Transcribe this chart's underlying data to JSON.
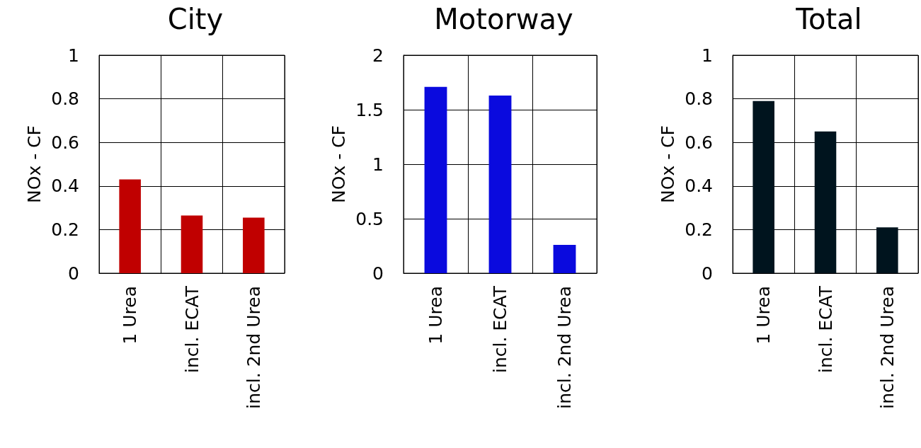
{
  "chart_data": [
    {
      "type": "bar",
      "title": "City",
      "ylabel": "NOx - CF",
      "categories": [
        "1 Urea",
        "incl. ECAT",
        "incl. 2nd Urea"
      ],
      "values": [
        0.43,
        0.265,
        0.255
      ],
      "color": "#c00000",
      "ylim": [
        0,
        1
      ],
      "yticks": [
        0,
        0.2,
        0.4,
        0.6,
        0.8,
        1
      ],
      "grid": true
    },
    {
      "type": "bar",
      "title": "Motorway",
      "ylabel": "NOx - CF",
      "categories": [
        "1 Urea",
        "incl. ECAT",
        "incl. 2nd Urea"
      ],
      "values": [
        1.71,
        1.63,
        0.26
      ],
      "color": "#0a0ade",
      "ylim": [
        0,
        2
      ],
      "yticks": [
        0,
        0.5,
        1,
        1.5,
        2
      ],
      "grid": true
    },
    {
      "type": "bar",
      "title": "Total",
      "ylabel": "NOx - CF",
      "categories": [
        "1 Urea",
        "incl. ECAT",
        "incl. 2nd Urea"
      ],
      "values": [
        0.79,
        0.65,
        0.21
      ],
      "color": "#00141e",
      "ylim": [
        0,
        1
      ],
      "yticks": [
        0,
        0.2,
        0.4,
        0.6,
        0.8,
        1
      ],
      "grid": true
    }
  ]
}
